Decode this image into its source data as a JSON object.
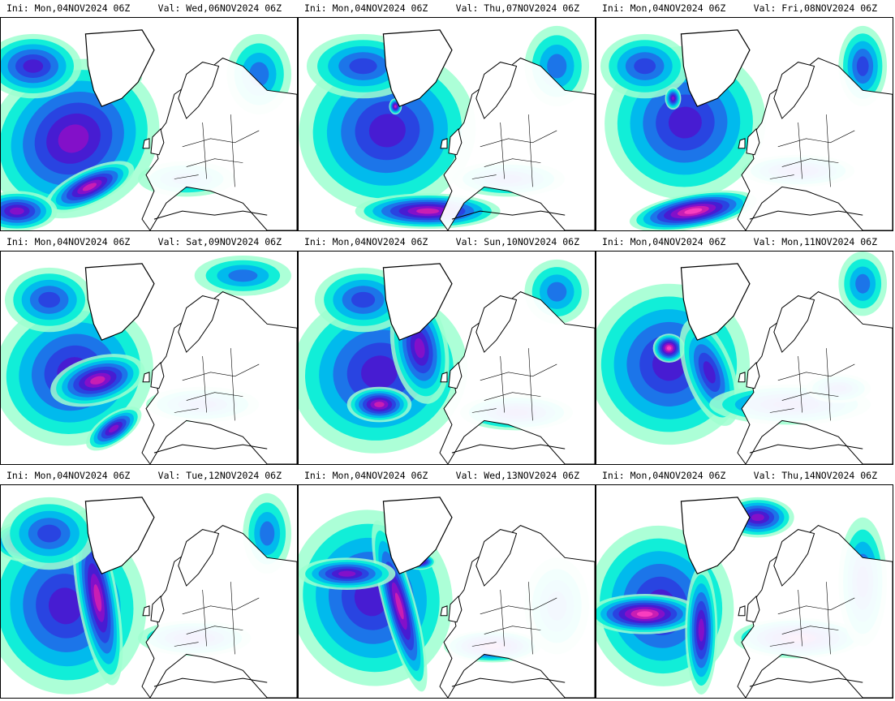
{
  "colors": {
    "scale": [
      "#9dffd0",
      "#00ecd8",
      "#00b4f0",
      "#1f6ee8",
      "#2b3fe0",
      "#4a18d0",
      "#8a10c8",
      "#d020b0",
      "#ff40c0"
    ],
    "coastline": "#000000",
    "border": "#000000"
  },
  "panels": [
    {
      "ini": "Ini: Mon,04NOV2024 06Z",
      "val": "Val: Wed,06NOV2024 06Z"
    },
    {
      "ini": "Ini: Mon,04NOV2024 06Z",
      "val": "Val: Thu,07NOV2024 06Z"
    },
    {
      "ini": "Ini: Mon,04NOV2024 06Z",
      "val": "Val: Fri,08NOV2024 06Z"
    },
    {
      "ini": "Ini: Mon,04NOV2024 06Z",
      "val": "Val: Sat,09NOV2024 06Z"
    },
    {
      "ini": "Ini: Mon,04NOV2024 06Z",
      "val": "Val: Sun,10NOV2024 06Z"
    },
    {
      "ini": "Ini: Mon,04NOV2024 06Z",
      "val": "Val: Mon,11NOV2024 06Z"
    },
    {
      "ini": "Ini: Mon,04NOV2024 06Z",
      "val": "Val: Tue,12NOV2024 06Z"
    },
    {
      "ini": "Ini: Mon,04NOV2024 06Z",
      "val": "Val: Wed,13NOV2024 06Z"
    },
    {
      "ini": "Ini: Mon,04NOV2024 06Z",
      "val": "Val: Thu,14NOV2024 06Z"
    }
  ]
}
